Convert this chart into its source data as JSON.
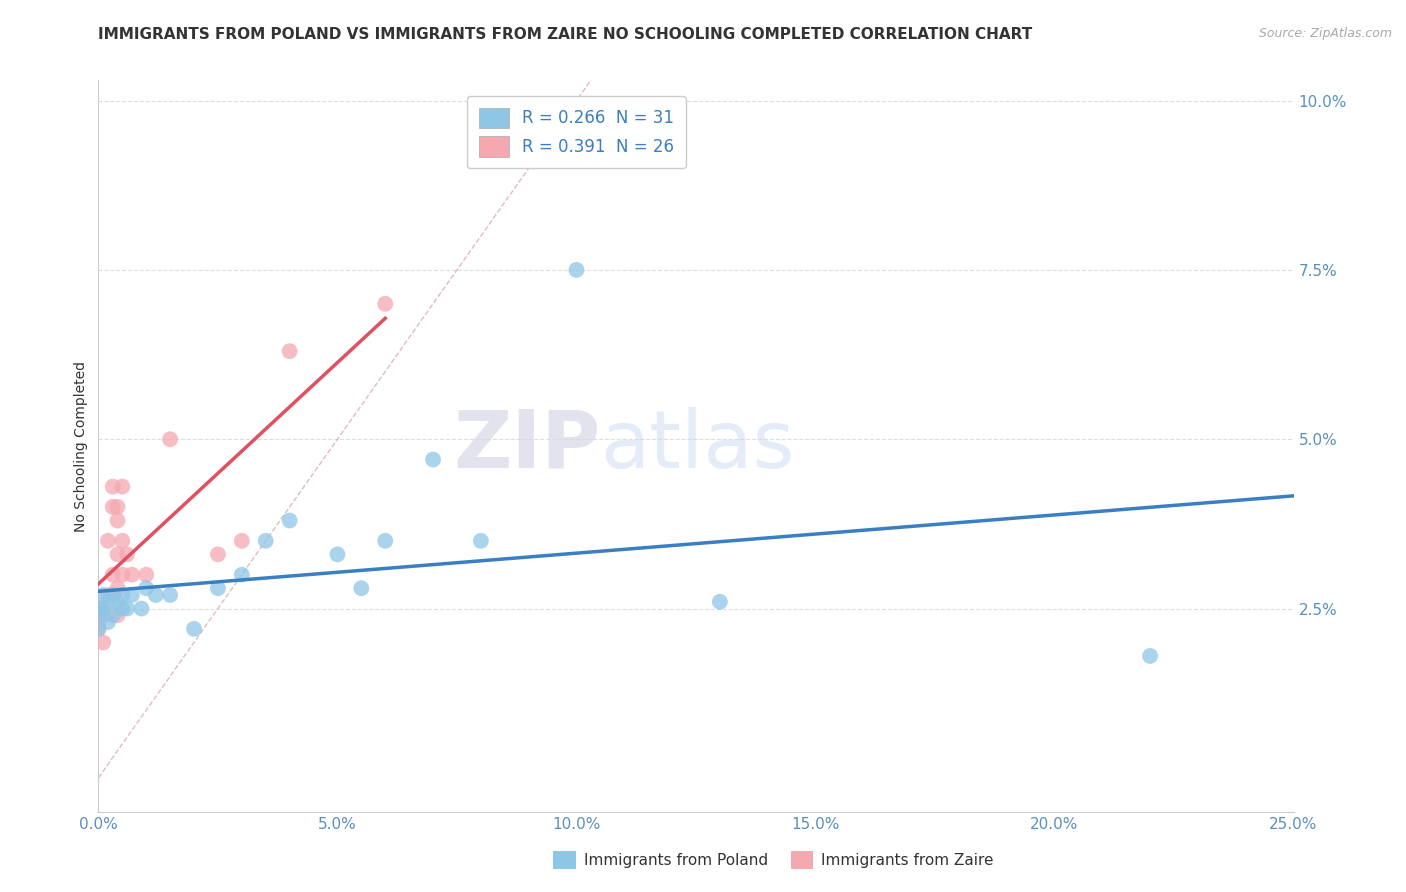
{
  "title": "IMMIGRANTS FROM POLAND VS IMMIGRANTS FROM ZAIRE NO SCHOOLING COMPLETED CORRELATION CHART",
  "source": "Source: ZipAtlas.com",
  "ylabel": "No Schooling Completed",
  "xlim": [
    0.0,
    0.25
  ],
  "ylim": [
    -0.005,
    0.103
  ],
  "xticks": [
    0.0,
    0.05,
    0.1,
    0.15,
    0.2,
    0.25
  ],
  "yticks": [
    0.025,
    0.05,
    0.075,
    0.1
  ],
  "xtick_labels": [
    "0.0%",
    "5.0%",
    "10.0%",
    "15.0%",
    "20.0%",
    "25.0%"
  ],
  "ytick_labels": [
    "2.5%",
    "5.0%",
    "7.5%",
    "10.0%"
  ],
  "legend_r1": "R = 0.266  N = 31",
  "legend_r2": "R = 0.391  N = 26",
  "color_poland": "#8ec6e6",
  "color_zaire": "#f4a8b0",
  "trendline_color_poland": "#3a7fc1",
  "trendline_color_zaire": "#e05060",
  "diagonal_color": "#cccccc",
  "poland_x": [
    0.0,
    0.0,
    0.0,
    0.001,
    0.001,
    0.002,
    0.002,
    0.003,
    0.003,
    0.004,
    0.005,
    0.005,
    0.006,
    0.007,
    0.009,
    0.01,
    0.012,
    0.015,
    0.02,
    0.025,
    0.03,
    0.035,
    0.04,
    0.05,
    0.055,
    0.06,
    0.07,
    0.08,
    0.1,
    0.13,
    0.22
  ],
  "poland_y": [
    0.022,
    0.024,
    0.025,
    0.025,
    0.027,
    0.023,
    0.026,
    0.024,
    0.027,
    0.026,
    0.025,
    0.027,
    0.025,
    0.027,
    0.025,
    0.028,
    0.027,
    0.027,
    0.022,
    0.028,
    0.03,
    0.035,
    0.038,
    0.033,
    0.028,
    0.035,
    0.047,
    0.035,
    0.075,
    0.026,
    0.018
  ],
  "zaire_x": [
    0.0,
    0.0,
    0.001,
    0.001,
    0.001,
    0.002,
    0.002,
    0.003,
    0.003,
    0.003,
    0.004,
    0.004,
    0.004,
    0.004,
    0.004,
    0.005,
    0.005,
    0.005,
    0.006,
    0.007,
    0.01,
    0.015,
    0.025,
    0.03,
    0.04,
    0.06
  ],
  "zaire_y": [
    0.022,
    0.023,
    0.02,
    0.024,
    0.025,
    0.027,
    0.035,
    0.03,
    0.04,
    0.043,
    0.024,
    0.028,
    0.033,
    0.038,
    0.04,
    0.03,
    0.035,
    0.043,
    0.033,
    0.03,
    0.03,
    0.05,
    0.033,
    0.035,
    0.063,
    0.07
  ],
  "background_color": "#ffffff",
  "watermark_zip": "ZIP",
  "watermark_atlas": "atlas",
  "title_fontsize": 11,
  "label_fontsize": 10,
  "tick_fontsize": 11
}
